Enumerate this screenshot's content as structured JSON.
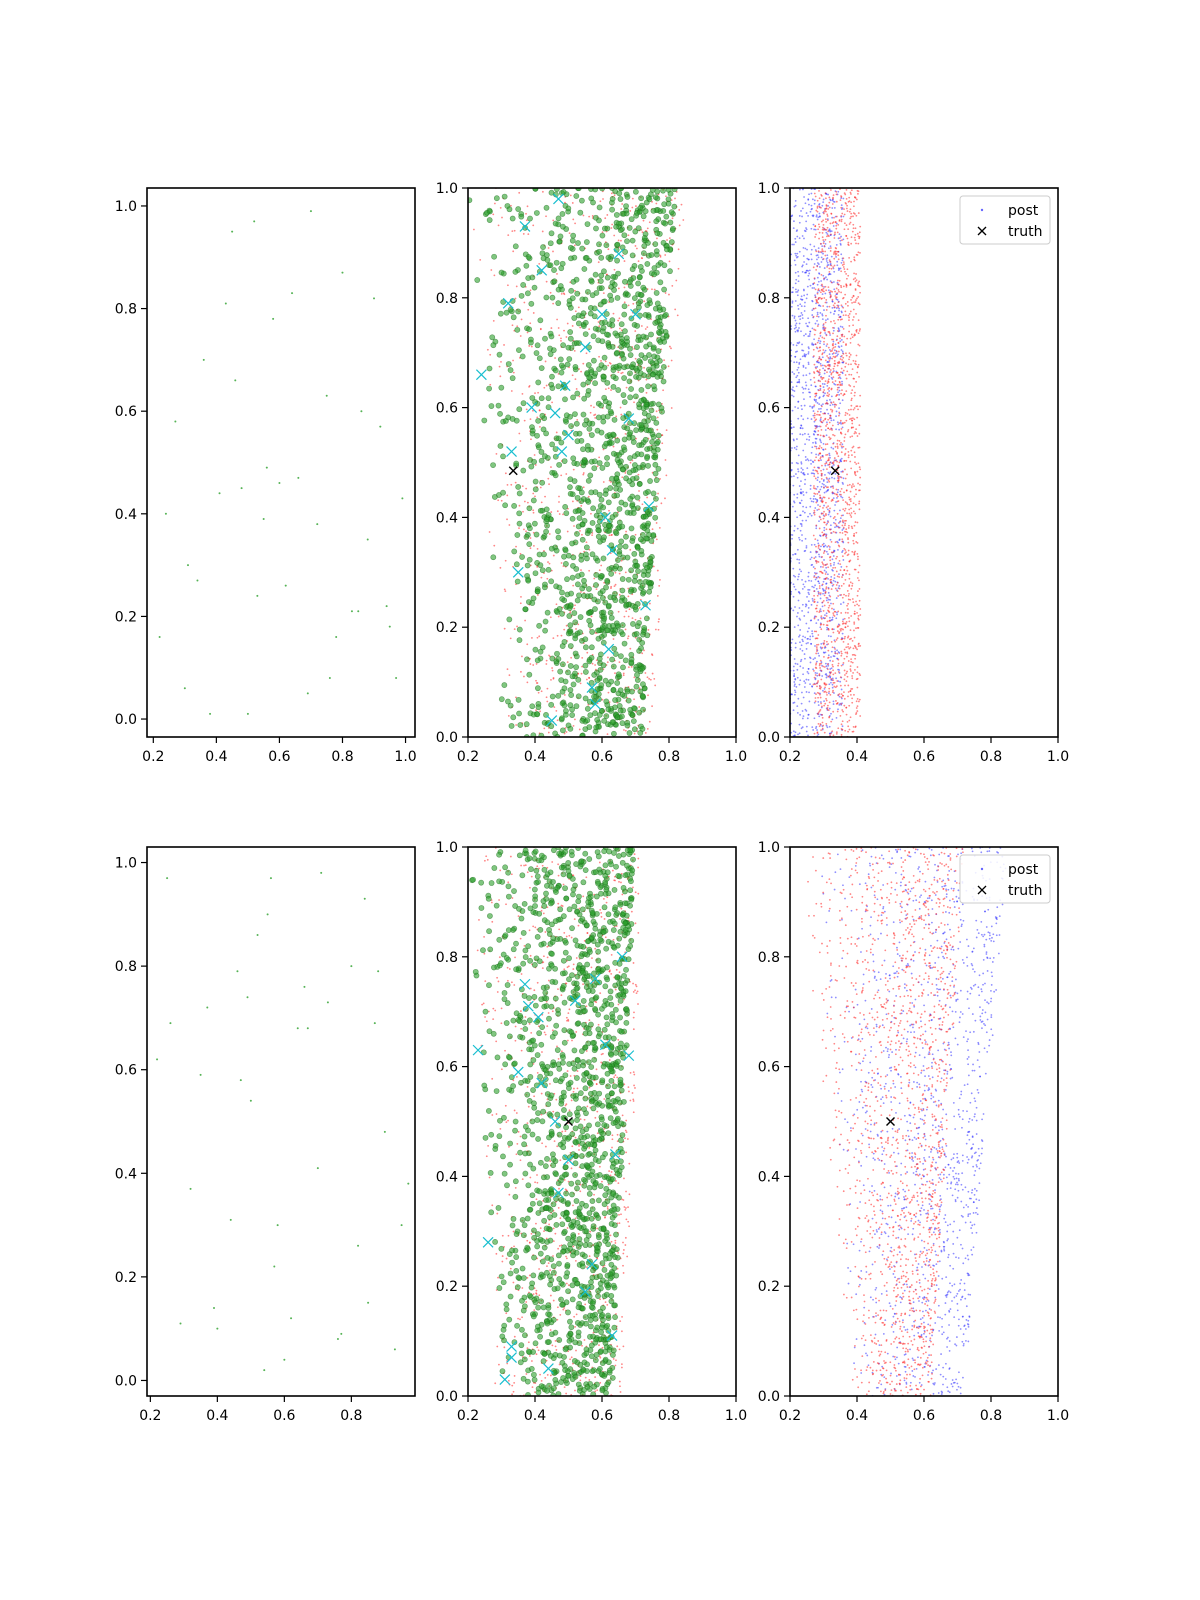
{
  "chart_data": [
    {
      "type": "scatter",
      "panel": "row1-col1",
      "xlim": [
        0.18,
        1.03
      ],
      "ylim": [
        -0.035,
        1.035
      ],
      "xticks": [
        "0.2",
        "0.4",
        "0.6",
        "0.8",
        "1.0"
      ],
      "yticks": [
        "0.0",
        "0.2",
        "0.4",
        "0.6",
        "0.8",
        "1.0"
      ],
      "series": [
        {
          "marker": "dot",
          "color": "#2ca02c",
          "size": "tiny",
          "x": [
            0.22,
            0.3,
            0.38,
            0.45,
            0.5,
            0.52,
            0.58,
            0.62,
            0.7,
            0.75,
            0.8,
            0.85,
            0.9,
            0.95,
            0.99,
            0.27,
            0.34,
            0.43,
            0.48,
            0.55,
            0.64,
            0.72,
            0.78,
            0.83,
            0.92,
            0.97,
            0.24,
            0.41,
            0.6,
            0.69,
            0.88,
            0.46,
            0.56,
            0.36,
            0.66,
            0.76,
            0.94,
            0.31,
            0.53,
            0.86
          ],
          "y": [
            0.16,
            0.06,
            0.01,
            0.95,
            0.01,
            0.97,
            0.78,
            0.26,
            0.99,
            0.63,
            0.87,
            0.21,
            0.82,
            0.18,
            0.43,
            0.58,
            0.27,
            0.81,
            0.45,
            0.39,
            0.83,
            0.38,
            0.16,
            0.21,
            0.57,
            0.08,
            0.4,
            0.44,
            0.46,
            0.05,
            0.35,
            0.66,
            0.49,
            0.7,
            0.47,
            0.08,
            0.22,
            0.3,
            0.24,
            0.6
          ]
        }
      ]
    },
    {
      "type": "scatter",
      "panel": "row1-col2",
      "xlim": [
        0.2,
        1.0
      ],
      "ylim": [
        0.0,
        1.0
      ],
      "xticks": [
        "0.2",
        "0.4",
        "0.6",
        "0.8",
        "1.0"
      ],
      "yticks": [
        "0.0",
        "0.2",
        "0.4",
        "0.6",
        "0.8",
        "1.0"
      ],
      "cloud": {
        "count": 1400,
        "y_range": [
          0.0,
          1.0
        ],
        "x_left_bottom": 0.3,
        "x_left_top": 0.2,
        "x_right_bottom": 0.72,
        "x_right_top": 0.82,
        "seed": 11
      },
      "series": [
        {
          "marker": "dot",
          "color": "#ff3333",
          "role": "background-small-red"
        },
        {
          "marker": "circle",
          "color": "#2ca02c",
          "role": "green-circles"
        },
        {
          "marker": "x",
          "color": "#17becf",
          "x": [
            0.24,
            0.32,
            0.33,
            0.35,
            0.37,
            0.39,
            0.42,
            0.46,
            0.47,
            0.48,
            0.49,
            0.5,
            0.55,
            0.58,
            0.6,
            0.61,
            0.63,
            0.65,
            0.68,
            0.7,
            0.73,
            0.74,
            0.62,
            0.57,
            0.45
          ],
          "y": [
            0.66,
            0.79,
            0.52,
            0.3,
            0.93,
            0.6,
            0.85,
            0.59,
            0.98,
            0.52,
            0.64,
            0.55,
            0.71,
            0.06,
            0.77,
            0.4,
            0.34,
            0.88,
            0.58,
            0.77,
            0.24,
            0.42,
            0.16,
            0.09,
            0.03
          ]
        },
        {
          "marker": "x",
          "color": "#000000",
          "name": "truth",
          "x": [
            0.335
          ],
          "y": [
            0.485
          ]
        }
      ]
    },
    {
      "type": "scatter",
      "panel": "row1-col3",
      "xlim": [
        0.2,
        1.0
      ],
      "ylim": [
        0.0,
        1.0
      ],
      "xticks": [
        "0.2",
        "0.4",
        "0.6",
        "0.8",
        "1.0"
      ],
      "yticks": [
        "0.0",
        "0.2",
        "0.4",
        "0.6",
        "0.8",
        "1.0"
      ],
      "legend": {
        "placement": "top-right",
        "entries": [
          {
            "label": "post",
            "marker": "dot",
            "color": "#6666ff"
          },
          {
            "label": "truth",
            "marker": "x",
            "color": "#000000"
          }
        ]
      },
      "series": [
        {
          "marker": "dot",
          "color": "#3333ff",
          "name": "post",
          "x_range": [
            0.2,
            0.36
          ],
          "y_range": [
            0.0,
            1.0
          ],
          "count": 1400,
          "seed": 21
        },
        {
          "marker": "dot",
          "color": "#ff2222",
          "x_range": [
            0.27,
            0.41
          ],
          "y_range": [
            0.0,
            1.0
          ],
          "count": 1500,
          "seed": 31
        },
        {
          "marker": "x",
          "color": "#000000",
          "name": "truth",
          "x": [
            0.335
          ],
          "y": [
            0.485
          ]
        }
      ]
    },
    {
      "type": "scatter",
      "panel": "row2-col1",
      "xlim": [
        0.19,
        0.99
      ],
      "ylim": [
        -0.03,
        1.03
      ],
      "xticks": [
        "0.2",
        "0.4",
        "0.6",
        "0.8"
      ],
      "yticks": [
        "0.0",
        "0.2",
        "0.4",
        "0.6",
        "0.8",
        "1.0"
      ],
      "series": [
        {
          "marker": "dot",
          "color": "#2ca02c",
          "size": "tiny",
          "x": [
            0.22,
            0.25,
            0.26,
            0.32,
            0.37,
            0.4,
            0.44,
            0.46,
            0.5,
            0.52,
            0.54,
            0.56,
            0.58,
            0.62,
            0.64,
            0.66,
            0.7,
            0.73,
            0.76,
            0.8,
            0.82,
            0.85,
            0.88,
            0.9,
            0.93,
            0.97,
            0.29,
            0.39,
            0.49,
            0.57,
            0.67,
            0.77,
            0.87,
            0.95,
            0.35,
            0.6,
            0.71,
            0.84,
            0.47,
            0.55
          ],
          "y": [
            0.62,
            0.97,
            0.69,
            0.37,
            0.72,
            0.1,
            0.31,
            0.79,
            0.54,
            0.86,
            0.02,
            0.97,
            0.3,
            0.12,
            0.68,
            0.76,
            0.41,
            0.73,
            0.08,
            0.8,
            0.26,
            0.15,
            0.79,
            0.48,
            0.06,
            0.38,
            0.11,
            0.14,
            0.74,
            0.22,
            0.68,
            0.09,
            0.69,
            0.3,
            0.59,
            0.04,
            0.98,
            0.93,
            0.58,
            0.9
          ]
        }
      ]
    },
    {
      "type": "scatter",
      "panel": "row2-col2",
      "xlim": [
        0.2,
        1.0
      ],
      "ylim": [
        0.0,
        1.0
      ],
      "xticks": [
        "0.2",
        "0.4",
        "0.6",
        "0.8",
        "1.0"
      ],
      "yticks": [
        "0.0",
        "0.2",
        "0.4",
        "0.6",
        "0.8",
        "1.0"
      ],
      "cloud": {
        "count": 1400,
        "y_range": [
          0.0,
          1.0
        ],
        "x_left_bottom": 0.28,
        "x_left_top": 0.2,
        "x_right_bottom": 0.63,
        "x_right_top": 0.7,
        "seed": 41
      },
      "series": [
        {
          "marker": "dot",
          "color": "#ff3333",
          "role": "background-small-red"
        },
        {
          "marker": "circle",
          "color": "#2ca02c",
          "role": "green-circles"
        },
        {
          "marker": "x",
          "color": "#17becf",
          "x": [
            0.23,
            0.26,
            0.31,
            0.33,
            0.35,
            0.37,
            0.38,
            0.41,
            0.44,
            0.46,
            0.5,
            0.52,
            0.55,
            0.58,
            0.61,
            0.64,
            0.66,
            0.68,
            0.63,
            0.57,
            0.47,
            0.42,
            0.33
          ],
          "y": [
            0.63,
            0.28,
            0.03,
            0.07,
            0.59,
            0.75,
            0.71,
            0.69,
            0.05,
            0.5,
            0.43,
            0.72,
            0.19,
            0.76,
            0.64,
            0.44,
            0.8,
            0.62,
            0.11,
            0.24,
            0.37,
            0.57,
            0.09
          ]
        },
        {
          "marker": "x",
          "color": "#000000",
          "name": "truth",
          "x": [
            0.5
          ],
          "y": [
            0.5
          ]
        }
      ]
    },
    {
      "type": "scatter",
      "panel": "row2-col3",
      "xlim": [
        0.2,
        1.0
      ],
      "ylim": [
        0.0,
        1.0
      ],
      "xticks": [
        "0.2",
        "0.4",
        "0.6",
        "0.8",
        "1.0"
      ],
      "yticks": [
        "0.0",
        "0.2",
        "0.4",
        "0.6",
        "0.8",
        "1.0"
      ],
      "legend": {
        "placement": "top-right",
        "entries": [
          {
            "label": "post",
            "marker": "dot",
            "color": "#6666ff"
          },
          {
            "label": "truth",
            "marker": "x",
            "color": "#000000"
          }
        ]
      },
      "series": [
        {
          "marker": "dot",
          "color": "#3333ff",
          "name": "post",
          "band": {
            "x_left_bottom": 0.4,
            "x_left_top": 0.25,
            "x_right_bottom": 0.72,
            "x_right_top": 0.85
          },
          "count": 1300,
          "seed": 51
        },
        {
          "marker": "dot",
          "color": "#ff2222",
          "band": {
            "x_left_bottom": 0.38,
            "x_left_top": 0.22,
            "x_right_bottom": 0.62,
            "x_right_top": 0.72
          },
          "count": 1500,
          "seed": 61
        },
        {
          "marker": "x",
          "color": "#000000",
          "name": "truth",
          "x": [
            0.5
          ],
          "y": [
            0.5
          ]
        }
      ]
    }
  ]
}
